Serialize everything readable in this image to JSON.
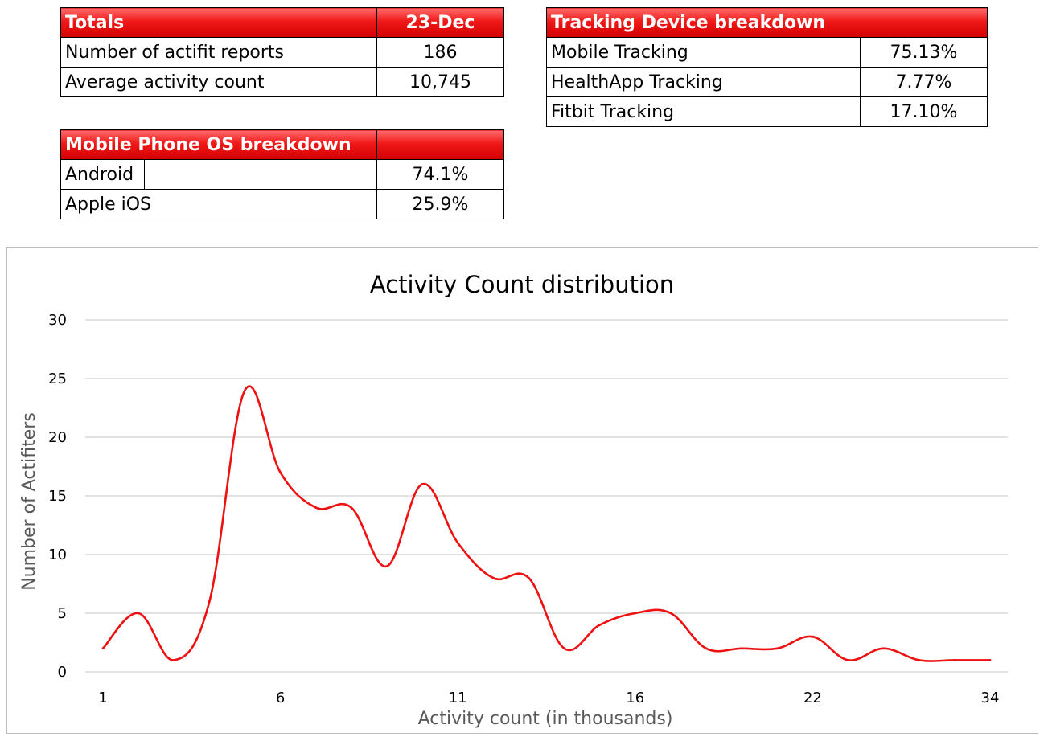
{
  "totals": {
    "header_label": "Totals",
    "header_value": "23-Dec",
    "rows": [
      {
        "label": "Number of actifit reports",
        "value": "186"
      },
      {
        "label": "Average activity count",
        "value": "10,745"
      }
    ]
  },
  "tracking": {
    "header_label": "Tracking Device breakdown",
    "rows": [
      {
        "label": "Mobile Tracking",
        "value": "75.13%"
      },
      {
        "label": "HealthApp Tracking",
        "value": "7.77%"
      },
      {
        "label": "Fitbit Tracking",
        "value": "17.10%"
      }
    ]
  },
  "os": {
    "header_label": "Mobile Phone OS breakdown",
    "rows": [
      {
        "label": "Android",
        "value": "74.1%"
      },
      {
        "label": "Apple iOS",
        "value": "25.9%"
      }
    ]
  },
  "colors": {
    "header_red": "#e00000",
    "line": "#ee1111",
    "grid": "#d9d9d9"
  },
  "chart_data": {
    "type": "line",
    "title": "Activity Count distribution",
    "xlabel": "Activity count (in thousands)",
    "ylabel": "Number of Actifiters",
    "ylim": [
      0,
      30
    ],
    "yticks": [
      0,
      5,
      10,
      15,
      20,
      25,
      30
    ],
    "x_tick_labels": [
      "1",
      "6",
      "11",
      "16",
      "22",
      "34"
    ],
    "x_tick_index": [
      0,
      5,
      10,
      15,
      20,
      25
    ],
    "grid": true,
    "smooth": true,
    "series": [
      {
        "values": [
          2,
          5,
          1,
          6,
          24,
          17,
          14,
          14,
          9,
          16,
          11,
          8,
          8,
          2,
          4,
          5,
          5,
          2,
          2,
          2,
          3,
          1,
          2,
          1,
          1,
          1
        ]
      }
    ]
  }
}
